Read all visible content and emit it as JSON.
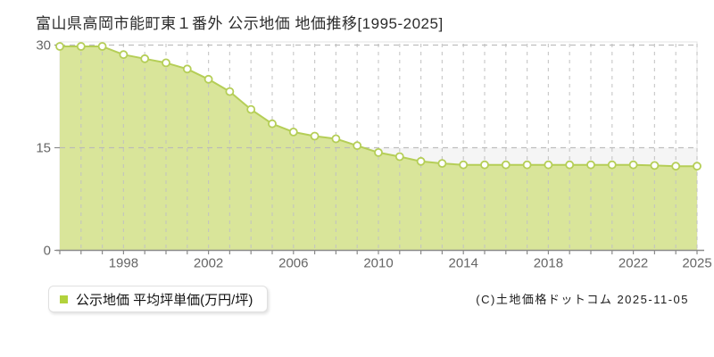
{
  "title": "富山県高岡市能町東１番外 公示地価 地価推移[1995-2025]",
  "legend": {
    "label": "公示地価 平均坪単価(万円/坪)",
    "marker_color": "#b2d23c"
  },
  "copyright": "(C)土地価格ドットコム 2025-11-05",
  "chart_data": {
    "type": "area",
    "title": "富山県高岡市能町東１番外 公示地価 地価推移[1995-2025]",
    "series_name": "公示地価 平均坪単価(万円/坪)",
    "unit": "万円/坪",
    "x": [
      1995,
      1996,
      1997,
      1998,
      1999,
      2000,
      2001,
      2002,
      2003,
      2004,
      2005,
      2006,
      2007,
      2008,
      2009,
      2010,
      2011,
      2012,
      2013,
      2014,
      2015,
      2016,
      2017,
      2018,
      2019,
      2020,
      2021,
      2022,
      2023,
      2024,
      2025
    ],
    "values": [
      29.8,
      29.8,
      29.8,
      28.6,
      28.0,
      27.4,
      26.5,
      25.0,
      23.2,
      20.6,
      18.5,
      17.3,
      16.7,
      16.3,
      15.3,
      14.3,
      13.7,
      13.0,
      12.7,
      12.5,
      12.5,
      12.5,
      12.5,
      12.5,
      12.5,
      12.5,
      12.5,
      12.5,
      12.4,
      12.3,
      12.3
    ],
    "ylim": [
      0,
      30
    ],
    "yticks": [
      0,
      15,
      30
    ],
    "xticks": [
      1998,
      2002,
      2006,
      2010,
      2014,
      2018,
      2022,
      2025
    ],
    "grid": true,
    "legend_position": "bottom-left",
    "colors": {
      "line": "#b5ce57",
      "fill": "#d9e59a",
      "marker_fill": "#ffffff",
      "grid_vertical": "#c2c2c2",
      "grid_horizontal": "#b8b8b8",
      "frame": "#e4e4e4",
      "band_lower": "#f5f5f5",
      "axis": "#8a8a8a",
      "tick_label": "#666666"
    }
  }
}
